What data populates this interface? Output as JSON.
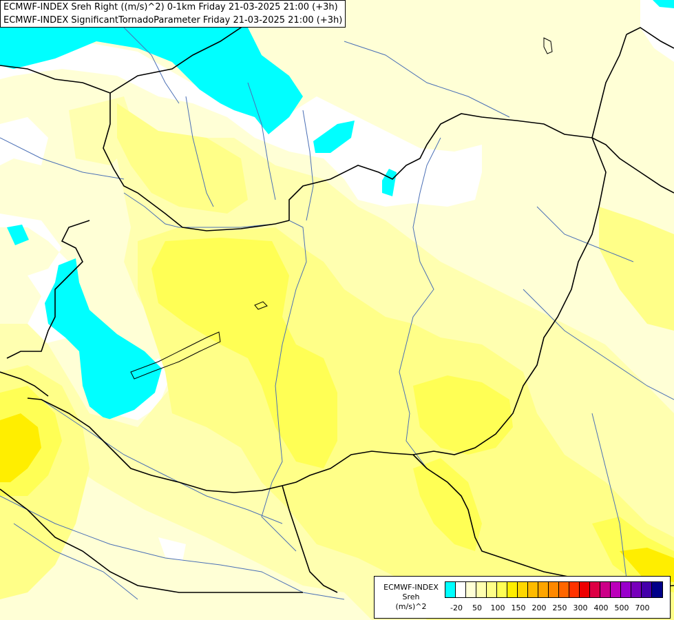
{
  "header": {
    "line1": "ECMWF-INDEX Sreh Right ((m/s)^2) 0-1km Friday 21-03-2025 21:00 (+3h)",
    "line2": "ECMWF-INDEX SignificantTornadoParameter Friday 21-03-2025 21:00 (+3h)"
  },
  "legend": {
    "title_line1": "ECMWF-INDEX",
    "title_line2": "Sreh",
    "title_line3": "(m/s)^2",
    "ticks": [
      "-20",
      "50",
      "100",
      "150",
      "200",
      "250",
      "300",
      "400",
      "500",
      "700"
    ],
    "colors": [
      "#00ffff",
      "#ffffff",
      "#ffffd6",
      "#ffffb0",
      "#ffff88",
      "#ffff55",
      "#ffee00",
      "#ffd700",
      "#ffbb00",
      "#ffa500",
      "#ff8800",
      "#ff6600",
      "#ff3300",
      "#ee0000",
      "#dd0044",
      "#cc0088",
      "#bb00bb",
      "#9900cc",
      "#7700bb",
      "#4400aa",
      "#000088"
    ]
  },
  "map": {
    "background_color": "#ffffd6",
    "fields": [
      {
        "name": "cyan",
        "color": "#00ffff"
      },
      {
        "name": "white",
        "color": "#ffffff"
      },
      {
        "name": "light-yellow",
        "color": "#ffffb0"
      },
      {
        "name": "yellow",
        "color": "#ffff88"
      },
      {
        "name": "bright-yellow",
        "color": "#ffff55"
      },
      {
        "name": "gold",
        "color": "#ffee00"
      }
    ],
    "border_color": "#000000",
    "river_color": "#4a6fb5"
  }
}
